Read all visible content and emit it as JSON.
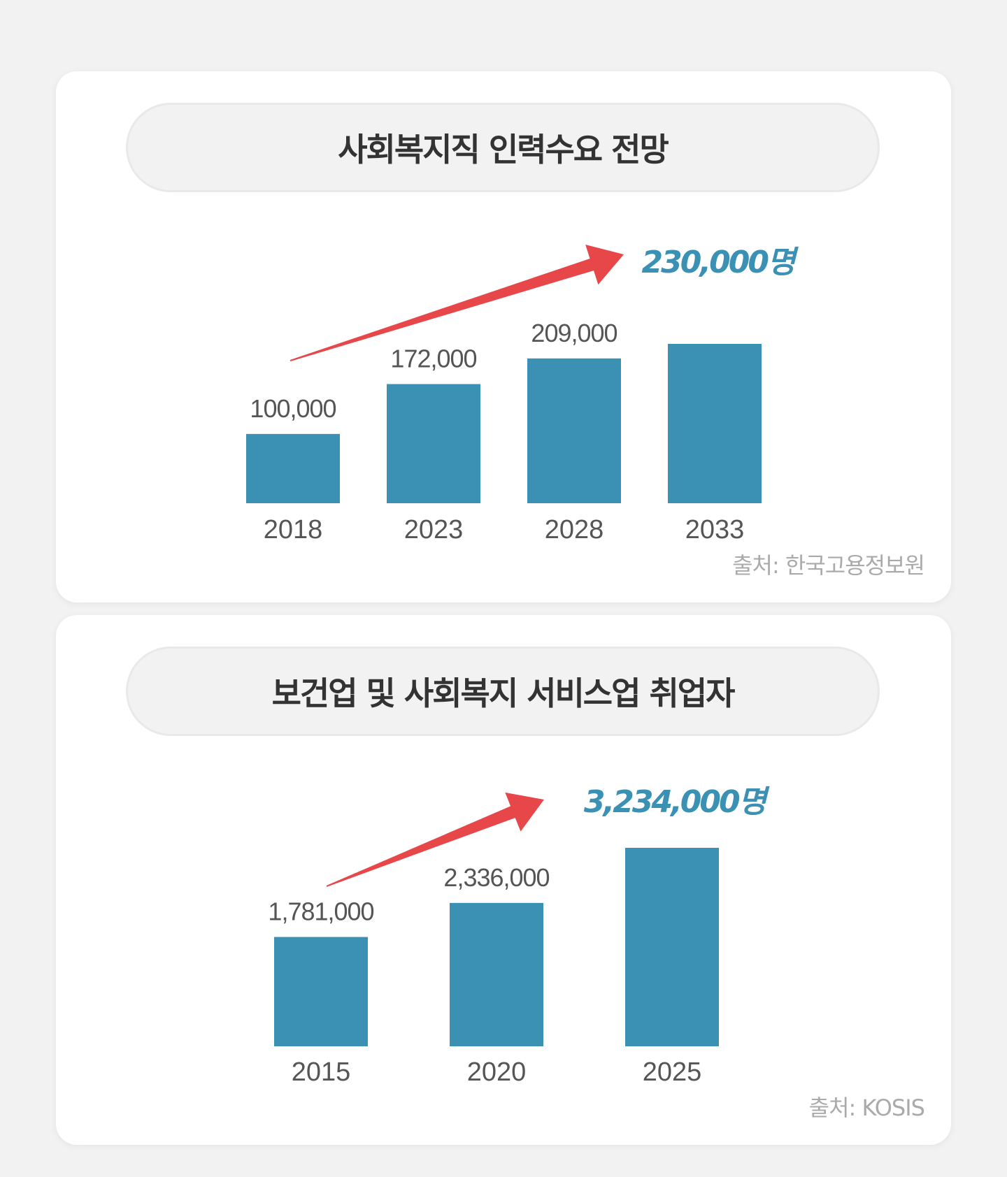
{
  "colors": {
    "bar": "#3a91b4",
    "arrow": "#e8474a",
    "value_text": "#555555",
    "highlight_fill": "#3a91b4",
    "highlight_stroke": "#ffffff"
  },
  "chart_data": [
    {
      "type": "bar",
      "title": "사회복지직 인력수요 전망",
      "categories": [
        "2018",
        "2023",
        "2028",
        "2033"
      ],
      "values": [
        100000,
        172000,
        209000,
        230000
      ],
      "value_labels": [
        "100,000",
        "172,000",
        "209,000",
        "230,000명"
      ],
      "highlight_index": 3,
      "source": "출처: 한국고용정보원",
      "grid": false
    },
    {
      "type": "bar",
      "title": "보건업 및 사회복지 서비스업 취업자",
      "categories": [
        "2015",
        "2020",
        "2025"
      ],
      "values": [
        1781000,
        2336000,
        3234000
      ],
      "value_labels": [
        "1,781,000",
        "2,336,000",
        "3,234,000명"
      ],
      "highlight_index": 2,
      "source": "출처: KOSIS",
      "grid": false
    }
  ]
}
